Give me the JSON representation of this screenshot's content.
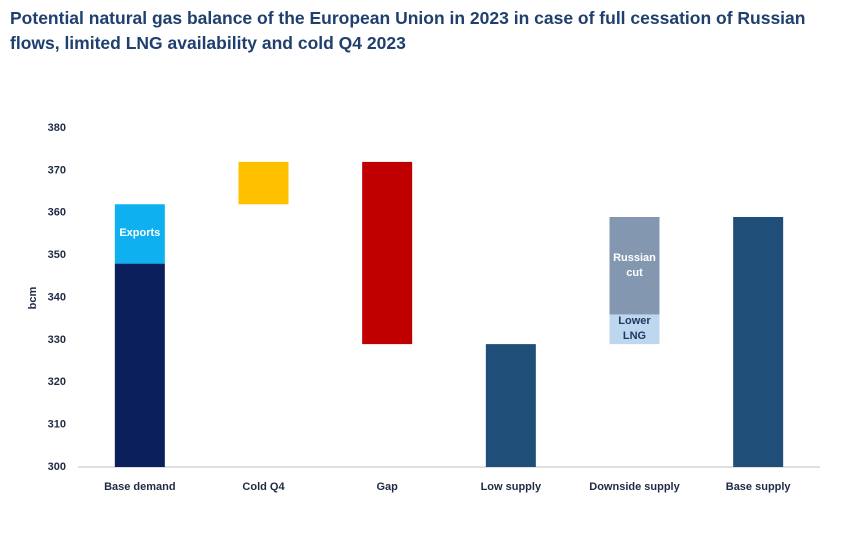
{
  "chart_data": {
    "type": "waterfall",
    "title": "Potential natural gas balance of the European Union in 2023 in case of full cessation of Russian flows, limited LNG availability and cold Q4 2023",
    "ylabel": "bcm",
    "ylim": [
      300,
      380
    ],
    "yticks": [
      300,
      310,
      320,
      330,
      340,
      350,
      360,
      370,
      380
    ],
    "grid": false,
    "categories": [
      "Base demand",
      "Cold Q4",
      "Gap",
      "Low supply",
      "Downside supply",
      "Base supply"
    ],
    "bars": [
      {
        "segments": [
          {
            "kind": "total",
            "value": 348,
            "color": "#0a1f5c"
          },
          {
            "kind": "step",
            "value": 14,
            "color": "#0eb0ef",
            "name": "Exports",
            "label_color": "#ffffff"
          }
        ]
      },
      {
        "segments": [
          {
            "kind": "step",
            "value": 10,
            "color": "#ffc000"
          }
        ]
      },
      {
        "segments": [
          {
            "kind": "step",
            "value": -43,
            "color": "#c00000"
          }
        ]
      },
      {
        "segments": [
          {
            "kind": "total",
            "value": 329,
            "color": "#1f4e79"
          }
        ]
      },
      {
        "segments": [
          {
            "kind": "step",
            "value": 7,
            "color": "#bdd7ee",
            "name": "Lower LNG",
            "label_color": "#1f3864"
          },
          {
            "kind": "step",
            "value": 23,
            "color": "#8497b0",
            "name": "Russian cut",
            "label_color": "#ffffff"
          }
        ]
      },
      {
        "segments": [
          {
            "kind": "total",
            "value": 359,
            "color": "#1f4e79"
          }
        ]
      }
    ]
  }
}
